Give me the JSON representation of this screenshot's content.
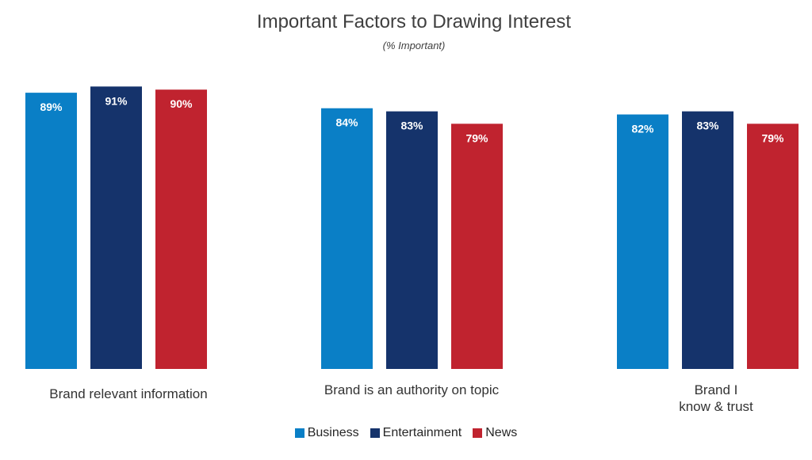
{
  "chart_data": {
    "type": "bar",
    "title": "Important Factors to Drawing Interest",
    "subtitle": "(% Important)",
    "categories": [
      "Brand relevant information",
      "Brand is an authority on topic",
      "Brand I\nknow & trust"
    ],
    "series": [
      {
        "name": "Business",
        "color": "#0a7fc6",
        "values": [
          89,
          84,
          82
        ],
        "labels": [
          "89%",
          "84%",
          "82%"
        ]
      },
      {
        "name": "Entertainment",
        "color": "#15336b",
        "values": [
          91,
          83,
          83
        ],
        "labels": [
          "91%",
          "83%",
          "83%"
        ]
      },
      {
        "name": "News",
        "color": "#c0232f",
        "values": [
          90,
          79,
          79
        ],
        "labels": [
          "90%",
          "79%",
          "79%"
        ]
      }
    ],
    "legend_position": "bottom",
    "grid": false
  }
}
